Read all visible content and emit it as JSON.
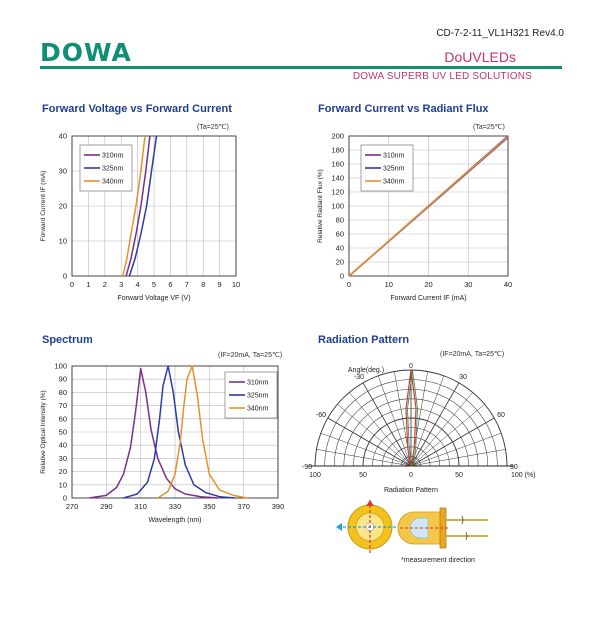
{
  "header": {
    "doc_id": "CD-7-2-11_VL1H321 Rev4.0",
    "logo": "DOWA",
    "product": "DoUVLEDs",
    "subtitle": "DOWA  SUPERB UV LED SOLUTIONS"
  },
  "colors": {
    "c310": "#7a2e8c",
    "c325": "#2b3aa8",
    "c340": "#e8902a",
    "brand": "#0f8f74",
    "accent": "#c4346f",
    "title": "#1e3f90"
  },
  "chart_data": [
    {
      "type": "line",
      "title": "Forward Voltage vs Forward Current",
      "condition": "(Ta=25℃)",
      "xlabel": "Forward Voltage VF (V)",
      "ylabel": "Forward Current IF (mA)",
      "xlim": [
        0,
        10
      ],
      "ylim": [
        0,
        40
      ],
      "xticks": [
        "0",
        "1",
        "2",
        "3",
        "4",
        "5",
        "6",
        "7",
        "8",
        "9",
        "10"
      ],
      "yticks": [
        "0",
        "10",
        "20",
        "30",
        "40"
      ],
      "grid": true,
      "legend": "top-left",
      "series": [
        {
          "name": "310nm",
          "x": [
            3.3,
            3.6,
            3.9,
            4.2,
            4.5,
            4.75
          ],
          "y": [
            0,
            5,
            12,
            20,
            30,
            40
          ]
        },
        {
          "name": "325nm",
          "x": [
            3.5,
            3.85,
            4.2,
            4.55,
            4.85,
            5.15
          ],
          "y": [
            0,
            5,
            12,
            20,
            30,
            40
          ]
        },
        {
          "name": "340nm",
          "x": [
            3.1,
            3.35,
            3.6,
            3.9,
            4.2,
            4.45
          ],
          "y": [
            0,
            5,
            12,
            20,
            30,
            40
          ]
        }
      ]
    },
    {
      "type": "line",
      "title": "Forward Current vs Radiant Flux",
      "condition": "(Ta=25℃)",
      "xlabel": "Forward Current IF (mA)",
      "ylabel": "Relative Radiant Flux (%)",
      "xlim": [
        0,
        40
      ],
      "ylim": [
        0,
        200
      ],
      "xticks": [
        "0",
        "10",
        "20",
        "30",
        "40"
      ],
      "yticks": [
        "0",
        "20",
        "40",
        "60",
        "80",
        "100",
        "120",
        "140",
        "160",
        "180",
        "200"
      ],
      "grid": true,
      "legend": "top-left",
      "series": [
        {
          "name": "310nm",
          "x": [
            0,
            20,
            40
          ],
          "y": [
            0,
            100,
            200
          ]
        },
        {
          "name": "325nm",
          "x": [
            0,
            20,
            40
          ],
          "y": [
            0,
            99,
            198
          ]
        },
        {
          "name": "340nm",
          "x": [
            0,
            20,
            40
          ],
          "y": [
            0,
            100,
            199
          ]
        }
      ]
    },
    {
      "type": "line",
      "title": "Spectrum",
      "condition": "(IF=20mA, Ta=25℃)",
      "xlabel": "Wavelength (nm)",
      "ylabel": "Relative Optical Intensity (%)",
      "xlim": [
        270,
        390
      ],
      "ylim": [
        0,
        100
      ],
      "xticks": [
        "270",
        "290",
        "310",
        "330",
        "350",
        "370",
        "390"
      ],
      "yticks": [
        "0",
        "10",
        "20",
        "30",
        "40",
        "50",
        "60",
        "70",
        "80",
        "90",
        "100"
      ],
      "grid": true,
      "legend": "top-right",
      "series": [
        {
          "name": "310nm",
          "x": [
            280,
            290,
            296,
            300,
            304,
            307,
            310,
            313,
            316,
            320,
            325,
            330,
            336,
            345,
            355
          ],
          "y": [
            0,
            2,
            8,
            18,
            38,
            65,
            98,
            80,
            52,
            30,
            15,
            7,
            3,
            1,
            0
          ]
        },
        {
          "name": "325nm",
          "x": [
            300,
            308,
            314,
            318,
            321,
            323,
            326,
            329,
            332,
            336,
            341,
            348,
            356,
            365
          ],
          "y": [
            0,
            3,
            12,
            30,
            60,
            85,
            100,
            80,
            50,
            25,
            10,
            4,
            1,
            0
          ]
        },
        {
          "name": "340nm",
          "x": [
            320,
            326,
            330,
            333,
            335,
            337,
            340,
            343,
            346,
            350,
            356,
            364,
            372
          ],
          "y": [
            0,
            5,
            18,
            42,
            68,
            90,
            100,
            78,
            45,
            18,
            6,
            2,
            0
          ]
        }
      ]
    },
    {
      "type": "polar",
      "title": "Radiation Pattern",
      "condition": "(IF=20mA, Ta=25℃)",
      "caption": "Radiation Pattern",
      "angle_label": "Angle(deg.)",
      "angle_labels": [
        "-90",
        "-60",
        "-30",
        "0",
        "30",
        "60",
        "90"
      ],
      "radial_labels": [
        "100",
        "50",
        "0",
        "50",
        "100 (%)"
      ],
      "series": [
        {
          "name": "pattern",
          "angle": [
            -30,
            -20,
            -10,
            -5,
            0,
            5,
            10,
            20,
            30
          ],
          "r": [
            0,
            4,
            20,
            60,
            100,
            60,
            20,
            4,
            0
          ]
        }
      ]
    }
  ],
  "diagram": {
    "measurement_label": "*measurement direction"
  }
}
